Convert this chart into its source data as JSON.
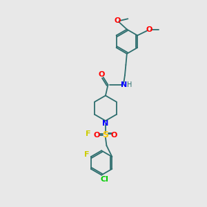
{
  "background_color": "#e8e8e8",
  "bond_color": "#2d6e6e",
  "atom_colors": {
    "O": "#ff0000",
    "N": "#0000ff",
    "F": "#cccc00",
    "Cl": "#00cc00",
    "S": "#ffcc00",
    "SO_oxygens": "#ff0000"
  },
  "figsize": [
    3.0,
    3.0
  ],
  "dpi": 100
}
